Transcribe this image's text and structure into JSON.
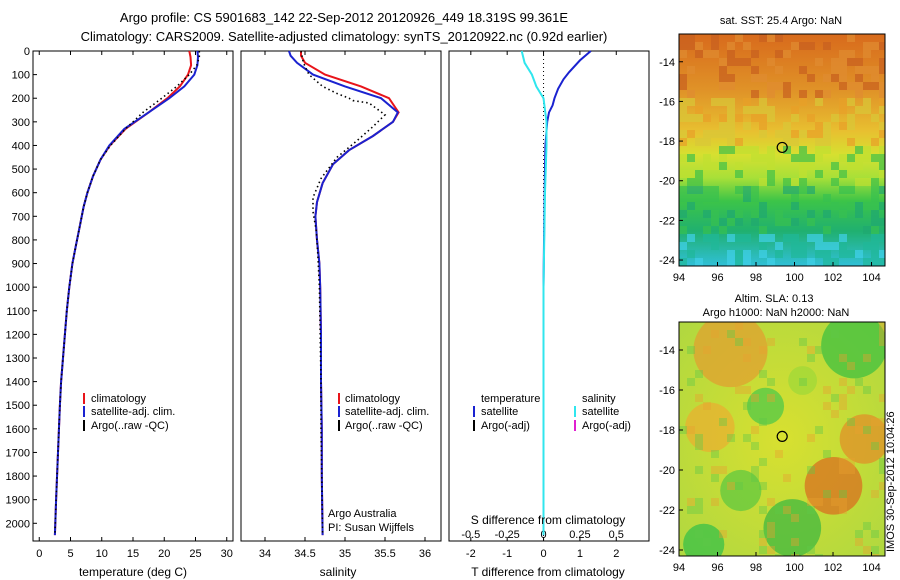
{
  "header": {
    "line1": "Argo profile: CS 5901683_142 22-Sep-2012 20120926_449 18.319S 99.361E",
    "line2": "Climatology: CARS2009. Satellite-adjusted climatology: synTS_20120922.nc (0.92d earlier)"
  },
  "colors": {
    "climatology": "#e8141a",
    "satellite": "#1a22d0",
    "argo": "#000000",
    "sal_satellite": "#30e6ee",
    "sal_argo": "#e020d0"
  },
  "chart_data": [
    {
      "type": "line",
      "name": "temperature-profile",
      "xlabel": "temperature (deg C)",
      "ylabel": "",
      "xlim": [
        -1,
        31
      ],
      "ylim": [
        2075,
        0
      ],
      "xticks": [
        0,
        5,
        10,
        15,
        20,
        25,
        30
      ],
      "yticks": [
        0,
        100,
        200,
        300,
        400,
        500,
        600,
        700,
        800,
        900,
        1000,
        1100,
        1200,
        1300,
        1400,
        1500,
        1600,
        1700,
        1800,
        1900,
        2000
      ],
      "legend": {
        "position": "lower-center",
        "entries": [
          "climatology",
          "satellite-adj. clim.",
          "Argo(..raw -QC)"
        ]
      },
      "series": [
        {
          "name": "climatology",
          "color": "climatology",
          "style": "solid",
          "x": [
            24.0,
            24.2,
            24.3,
            23.8,
            22.5,
            20.5,
            17.5,
            13.8,
            11.3,
            9.8,
            8.6,
            7.7,
            7.1,
            6.5,
            5.9,
            5.3,
            4.8,
            4.4,
            4.1,
            3.8,
            3.5,
            3.3,
            3.0,
            2.7,
            2.5
          ],
          "y": [
            0,
            25,
            60,
            100,
            150,
            200,
            260,
            330,
            400,
            460,
            530,
            600,
            660,
            740,
            820,
            900,
            1000,
            1100,
            1200,
            1300,
            1400,
            1500,
            1700,
            1900,
            2050
          ]
        },
        {
          "name": "satellite-adj. clim.",
          "color": "satellite",
          "style": "solid",
          "x": [
            25.3,
            25.4,
            25.3,
            24.8,
            23.2,
            20.8,
            17.5,
            13.6,
            11.2,
            9.8,
            8.6,
            7.7,
            7.1,
            6.5,
            5.9,
            5.3,
            4.8,
            4.4,
            4.1,
            3.8,
            3.5,
            3.3,
            3.0,
            2.7,
            2.5
          ],
          "y": [
            0,
            25,
            60,
            100,
            150,
            200,
            260,
            330,
            400,
            460,
            530,
            600,
            660,
            740,
            820,
            900,
            1000,
            1100,
            1200,
            1300,
            1400,
            1500,
            1700,
            1900,
            2050
          ]
        },
        {
          "name": "Argo(..raw -QC)",
          "color": "argo",
          "style": "dotted",
          "x": [
            25.6,
            25.6,
            25.2,
            24.0,
            22.0,
            19.6,
            16.6,
            13.8,
            11.4,
            9.8,
            8.6,
            7.7,
            7.1,
            6.5,
            5.9,
            5.3,
            4.8,
            4.4,
            4.1,
            3.8,
            3.5,
            3.3,
            3.0,
            2.7,
            2.5
          ],
          "y": [
            0,
            25,
            60,
            100,
            150,
            200,
            260,
            330,
            400,
            460,
            530,
            600,
            660,
            740,
            820,
            900,
            1000,
            1100,
            1200,
            1300,
            1400,
            1500,
            1700,
            1900,
            2050
          ]
        }
      ]
    },
    {
      "type": "line",
      "name": "salinity-profile",
      "xlabel": "salinity",
      "ylabel": "",
      "xlim": [
        33.7,
        36.2
      ],
      "ylim": [
        2075,
        0
      ],
      "xticks": [
        34,
        34.5,
        35,
        35.5,
        36
      ],
      "xticklabels": [
        "34",
        "34.5",
        "35",
        "35.5",
        "36"
      ],
      "legend": {
        "position": "lower-center",
        "entries": [
          "climatology",
          "satellite-adj. clim.",
          "Argo(..raw -QC)"
        ]
      },
      "annotation": [
        "Argo Australia",
        "PI: Susan Wijffels"
      ],
      "series": [
        {
          "name": "climatology",
          "color": "climatology",
          "style": "solid",
          "x": [
            34.45,
            34.45,
            34.5,
            34.75,
            35.2,
            35.55,
            35.67,
            35.6,
            35.35,
            35.05,
            34.85,
            34.72,
            34.65,
            34.63,
            34.65,
            34.68,
            34.69,
            34.7,
            34.7,
            34.71,
            34.71,
            34.72
          ],
          "y": [
            0,
            20,
            50,
            100,
            150,
            200,
            260,
            300,
            360,
            420,
            480,
            560,
            640,
            700,
            800,
            900,
            1000,
            1200,
            1400,
            1600,
            1800,
            2050
          ]
        },
        {
          "name": "satellite-adj. clim.",
          "color": "satellite",
          "style": "solid",
          "x": [
            34.3,
            34.32,
            34.4,
            34.6,
            35.0,
            35.45,
            35.66,
            35.6,
            35.35,
            35.05,
            34.85,
            34.72,
            34.65,
            34.63,
            34.65,
            34.68,
            34.69,
            34.7,
            34.7,
            34.71,
            34.71,
            34.72
          ],
          "y": [
            0,
            20,
            50,
            100,
            150,
            200,
            260,
            300,
            360,
            420,
            480,
            560,
            640,
            700,
            800,
            900,
            1000,
            1200,
            1400,
            1600,
            1800,
            2050
          ]
        },
        {
          "name": "Argo(..raw -QC)",
          "color": "argo",
          "style": "dotted",
          "x": [
            34.45,
            34.48,
            34.55,
            34.72,
            34.9,
            35.05,
            35.1,
            35.3,
            35.5,
            35.35,
            35.15,
            34.9,
            34.7,
            34.6,
            34.6,
            34.64,
            34.66,
            34.68,
            34.69,
            34.7,
            34.7,
            34.71,
            34.72
          ],
          "y": [
            0,
            50,
            100,
            150,
            180,
            200,
            210,
            220,
            270,
            320,
            380,
            450,
            540,
            620,
            680,
            760,
            860,
            1000,
            1200,
            1400,
            1600,
            1800,
            2050
          ]
        }
      ]
    },
    {
      "type": "line",
      "name": "difference-profile",
      "xlabel": "T difference from climatology",
      "toplabel": "S difference from climatology",
      "ylabel": "",
      "xlim": [
        -2.6,
        2.9
      ],
      "ylim": [
        2075,
        0
      ],
      "xticks": [
        -2,
        -1,
        0,
        1,
        2
      ],
      "xticklabels": [
        "-2",
        "-1",
        "0",
        "1",
        "2"
      ],
      "sticks": [
        -0.5,
        -0.25,
        0,
        0.25,
        0.5
      ],
      "sticklabels": [
        "-0.5",
        "-0.25",
        "0",
        "0.25",
        "0.5"
      ],
      "legend": {
        "position": "lower-center",
        "entries": [
          "temperature",
          "satellite",
          "Argo(-adj)",
          "salinity",
          "satellite",
          "Argo(-adj)"
        ]
      },
      "series": [
        {
          "name": "temperature satellite",
          "color": "satellite",
          "style": "solid",
          "scale": "T",
          "x": [
            1.3,
            1.0,
            0.7,
            0.55,
            0.4,
            0.3,
            0.25,
            0.15,
            0.1,
            0.05,
            0.04,
            0.02,
            0.0,
            0.0
          ],
          "y": [
            0,
            40,
            90,
            120,
            160,
            200,
            230,
            260,
            300,
            400,
            500,
            700,
            1000,
            2050
          ]
        },
        {
          "name": "salinity satellite",
          "color": "sal_satellite",
          "style": "solid",
          "scale": "S",
          "x": [
            -0.15,
            -0.13,
            -0.08,
            -0.05,
            0.0,
            0.02,
            0.02,
            0.01,
            0.0,
            0.0
          ],
          "y": [
            0,
            50,
            100,
            150,
            200,
            300,
            400,
            600,
            1000,
            2050
          ]
        }
      ]
    }
  ],
  "maps": [
    {
      "title": "sat. SST: 25.4  Argo: NaN",
      "xticks": [
        "94",
        "96",
        "98",
        "100",
        "102",
        "104"
      ],
      "yticks": [
        "-14",
        "-16",
        "-18",
        "-20",
        "-22",
        "-24"
      ],
      "xlim": [
        94,
        104.7
      ],
      "ylim": [
        -24.3,
        -12.6
      ],
      "marker": {
        "lon": 99.36,
        "lat": -18.32
      }
    },
    {
      "title_line1": "Altim. SLA: 0.13",
      "title_line2": "Argo h1000: NaN h2000: NaN",
      "xticks": [
        "94",
        "96",
        "98",
        "100",
        "102",
        "104"
      ],
      "yticks": [
        "-14",
        "-16",
        "-18",
        "-20",
        "-22",
        "-24"
      ],
      "xlim": [
        94,
        104.7
      ],
      "ylim": [
        -24.3,
        -12.6
      ],
      "marker": {
        "lon": 99.36,
        "lat": -18.32
      }
    }
  ],
  "sidenote": "IMOS 30-Sep-2012 10:04:26"
}
